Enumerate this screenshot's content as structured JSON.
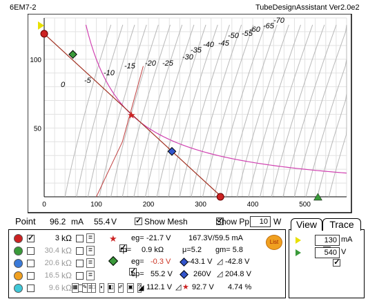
{
  "header": {
    "tube": "6EM7-2",
    "app": "TubeDesignAssistant Ver2.0e2"
  },
  "chart_data": {
    "type": "line",
    "title": "6EM7-2",
    "xlim": [
      0,
      580
    ],
    "ylim": [
      0,
      130
    ],
    "x_ticks": [
      "0",
      "100",
      "200",
      "300",
      "400",
      "500"
    ],
    "y_ticks": [
      "50",
      "100"
    ],
    "curve_labels": [
      "0",
      "-5",
      "-10",
      "-15",
      "-20",
      "-25",
      "-30",
      "-35",
      "-40",
      "-45",
      "-50",
      "-55",
      "-60",
      "-65",
      "-70"
    ],
    "load_line": {
      "color": "#a03020",
      "points": [
        [
          0,
          118.5
        ],
        [
          340,
          0
        ]
      ]
    },
    "power_curve": {
      "color": "#d040b0",
      "watts": 10
    },
    "markers": [
      {
        "name": "red-point",
        "color": "#cc2222",
        "x": 0,
        "y": 118.5
      },
      {
        "name": "green-point",
        "color": "#3a9a3a",
        "x": 55,
        "y": 103.5
      },
      {
        "name": "operating-star",
        "color": "#cc2222",
        "x": 167,
        "y": 59.5
      },
      {
        "name": "blue-point",
        "color": "#3355cc",
        "x": 245,
        "y": 33
      },
      {
        "name": "red-end",
        "color": "#cc2222",
        "x": 338,
        "y": 0
      }
    ]
  },
  "point_bar": {
    "label": "Point",
    "ma": "96.2",
    "ma_unit": "mA",
    "v": "55.4",
    "v_unit": "V",
    "show_mesh": "Show Mesh",
    "show_pp": "Show Pp",
    "pp_value": "10",
    "pp_unit": "W"
  },
  "loads": [
    {
      "color": "#cc2222",
      "value": "3",
      "unit": "kΩ",
      "checked": true,
      "dim": false
    },
    {
      "color": "#3a9a3a",
      "value": "30.4",
      "unit": "kΩ",
      "checked": false,
      "dim": true
    },
    {
      "color": "#3a7ad8",
      "value": "20.6",
      "unit": "kΩ",
      "checked": false,
      "dim": true
    },
    {
      "color": "#f0a020",
      "value": "16.5",
      "unit": "kΩ",
      "checked": false,
      "dim": true
    },
    {
      "color": "#40c8d8",
      "value": "9.6",
      "unit": "kΩ",
      "checked": false,
      "dim": true
    }
  ],
  "info": {
    "eg": "eg=",
    "eg_val": "-21.7 V",
    "op": "167.3V/",
    "op_ma": "59.5 mA",
    "rp": "rp=",
    "rp_val": "0.9 kΩ",
    "mu": "μ=5.2",
    "gm": "gm= 5.8",
    "eg2": "eg=",
    "eg2_val": "-0.3 V",
    "b1": "-43.1 V",
    "b2": "-42.8 V",
    "ep": "ep=",
    "ep_val": "55.2 V",
    "b3": "260V",
    "b4": "204.8 V",
    "t1": "112.1 V",
    "t2": "92.7 V",
    "pct": "4.74 %"
  },
  "list_button": "List",
  "tabs": {
    "view": "View",
    "trace": "Trace"
  },
  "trace": {
    "ma_value": "130",
    "ma_unit": "mA",
    "v_value": "540",
    "v_unit": "V"
  }
}
